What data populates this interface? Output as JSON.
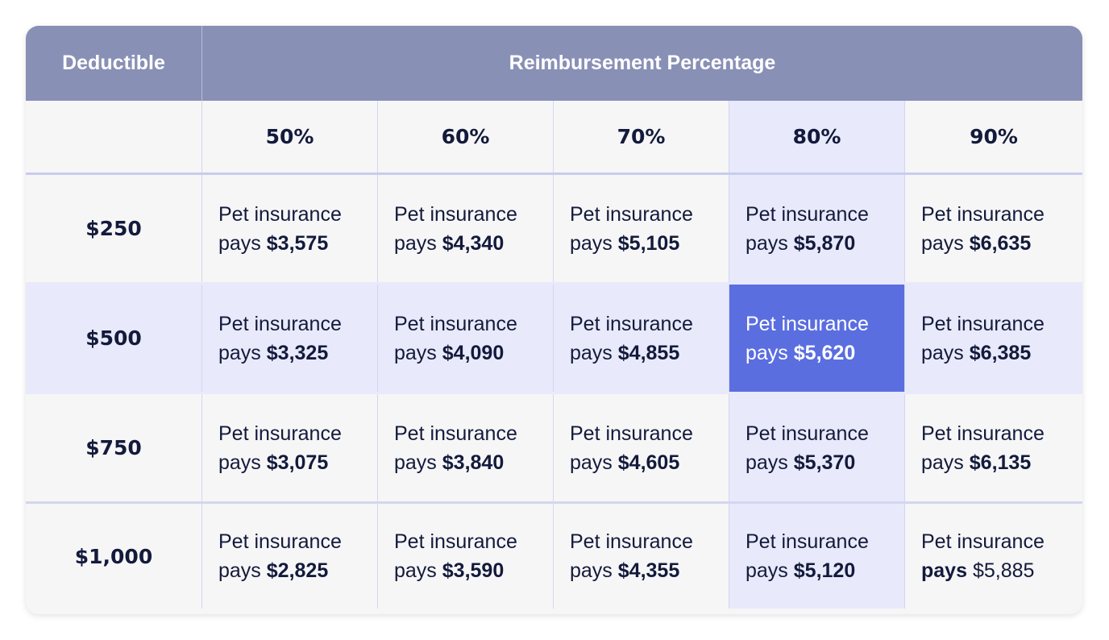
{
  "table": {
    "header_deductible": "Deductible",
    "header_reimbursement": "Reimbursement Percentage",
    "percentages": [
      "50%",
      "60%",
      "70%",
      "80%",
      "90%"
    ],
    "line1": "Pet insurance",
    "line2_prefix": "pays",
    "rows": [
      {
        "deductible": "$250",
        "values": [
          "$3,575",
          "$4,340",
          "$5,105",
          "$5,870",
          "$6,635"
        ]
      },
      {
        "deductible": "$500",
        "values": [
          "$3,325",
          "$4,090",
          "$4,855",
          "$5,620",
          "$6,385"
        ]
      },
      {
        "deductible": "$750",
        "values": [
          "$3,075",
          "$3,840",
          "$4,605",
          "$5,370",
          "$6,135"
        ]
      },
      {
        "deductible": "$1,000",
        "values": [
          "$2,825",
          "$3,590",
          "$4,355",
          "$5,120",
          "$5,885"
        ]
      }
    ],
    "highlight_column": "80%",
    "highlight_row": "$500",
    "colors": {
      "header_bg": "#8990b6",
      "highlight_bg": "#e8e9fa",
      "selected_bg": "#5a6ee0",
      "text": "#131a3b"
    }
  }
}
